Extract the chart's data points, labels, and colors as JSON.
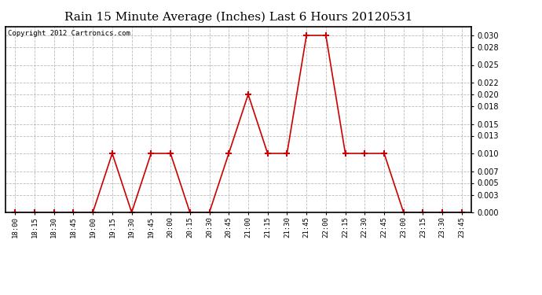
{
  "title": "Rain 15 Minute Average (Inches) Last 6 Hours 20120531",
  "copyright": "Copyright 2012 Cartronics.com",
  "line_color": "#cc0000",
  "marker": "+",
  "marker_size": 6,
  "marker_lw": 1.5,
  "bg_color": "#ffffff",
  "plot_bg_color": "#ffffff",
  "grid_color": "#bbbbbb",
  "title_fontsize": 11,
  "x_labels": [
    "18:00",
    "18:15",
    "18:30",
    "18:45",
    "19:00",
    "19:15",
    "19:30",
    "19:45",
    "20:00",
    "20:15",
    "20:30",
    "20:45",
    "21:00",
    "21:15",
    "21:30",
    "21:45",
    "22:00",
    "22:15",
    "22:30",
    "22:45",
    "23:00",
    "23:15",
    "23:30",
    "23:45"
  ],
  "y_values": [
    0.0,
    0.0,
    0.0,
    0.0,
    0.0,
    0.01,
    0.0,
    0.01,
    0.01,
    0.0,
    0.0,
    0.01,
    0.02,
    0.01,
    0.01,
    0.03,
    0.03,
    0.01,
    0.01,
    0.01,
    0.0,
    0.0,
    0.0,
    0.0
  ],
  "ylim": [
    0.0,
    0.0315
  ],
  "yticks": [
    0.0,
    0.003,
    0.005,
    0.007,
    0.01,
    0.013,
    0.015,
    0.018,
    0.02,
    0.022,
    0.025,
    0.028,
    0.03
  ]
}
